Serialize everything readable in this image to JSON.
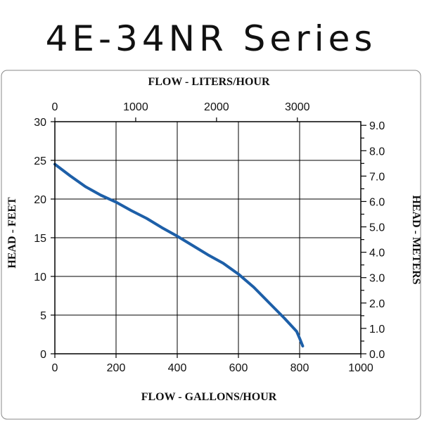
{
  "title": "4E-34NR Series",
  "colors": {
    "curve": "#1d5fa8",
    "grid": "#000000",
    "frame": "#000000"
  },
  "chart_data": {
    "type": "line",
    "xlabel": "FLOW - GALLONS/HOUR",
    "x2label": "FLOW - LITERS/HOUR",
    "ylabel": "HEAD - FEET",
    "y2label": "HEAD - METERS",
    "xlim": [
      0,
      1000
    ],
    "ylim": [
      0,
      30
    ],
    "x2lim": [
      0,
      3785
    ],
    "y2lim": [
      0,
      9.144
    ],
    "x_ticks": [
      "0",
      "200",
      "400",
      "600",
      "800",
      "1000"
    ],
    "y_ticks": [
      "0",
      "5",
      "10",
      "15",
      "20",
      "25",
      "30"
    ],
    "x2_ticks": [
      "0",
      "1000",
      "2000",
      "3000"
    ],
    "y2_ticks": [
      "0.0",
      "1.0",
      "2.0",
      "3.0",
      "4.0",
      "5.0",
      "6.0",
      "7.0",
      "8.0",
      "9.0"
    ],
    "grid": true,
    "series": [
      {
        "x": [
          0,
          50,
          100,
          150,
          200,
          250,
          300,
          350,
          400,
          450,
          500,
          550,
          600,
          650,
          700,
          750,
          790,
          800,
          810
        ],
        "y": [
          24.5,
          23.0,
          21.6,
          20.5,
          19.6,
          18.5,
          17.5,
          16.3,
          15.2,
          14.0,
          12.8,
          11.7,
          10.3,
          8.6,
          6.6,
          4.6,
          2.9,
          2.0,
          1.0
        ]
      }
    ]
  }
}
